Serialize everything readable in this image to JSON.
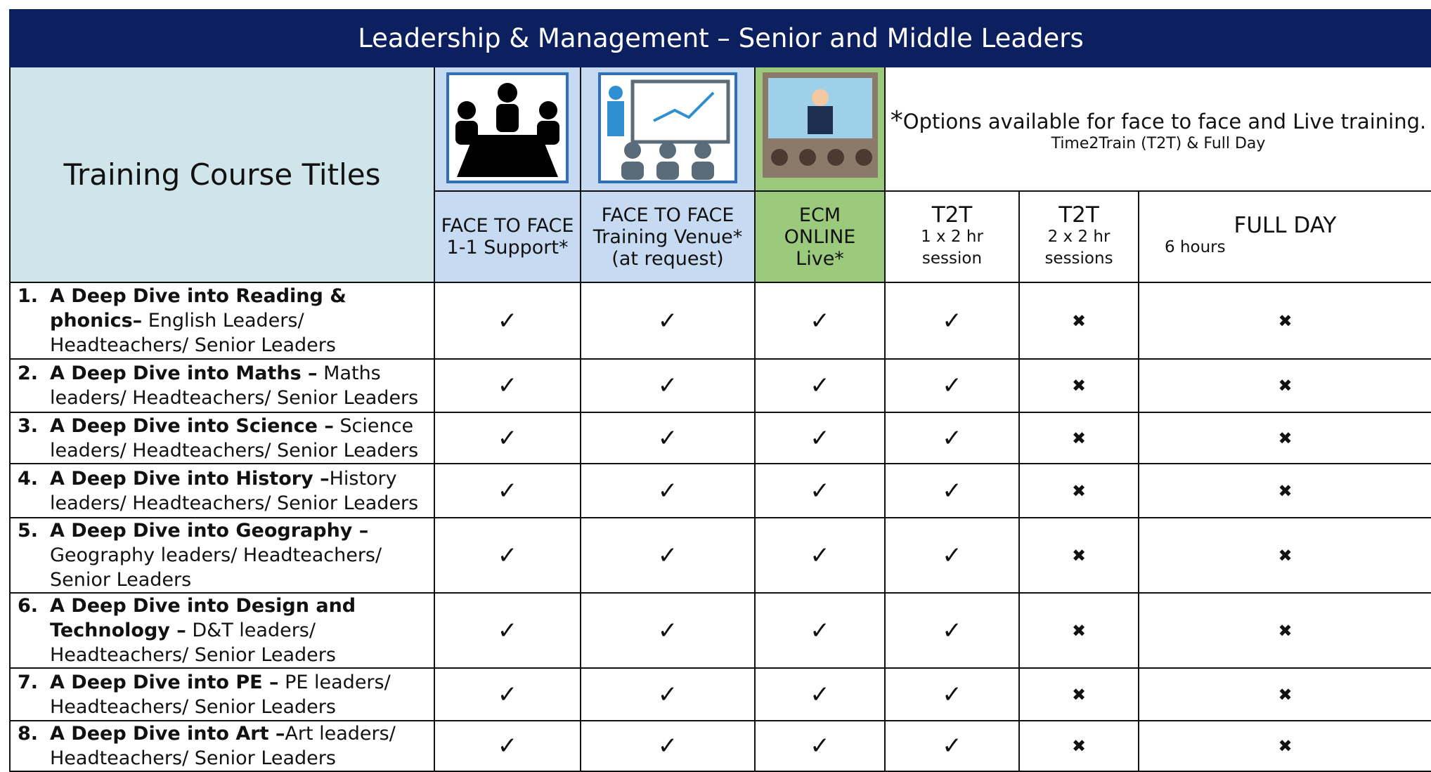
{
  "header": {
    "title": "Leadership & Management – Senior and Middle Leaders",
    "left_title": "Training Course Titles",
    "note_star": "*",
    "note": "Options available for face to face and Live training.",
    "note_sub": "Time2Train (T2T) & Full Day"
  },
  "columns": [
    {
      "lines": [
        "FACE TO FACE",
        "1-1 Support*"
      ]
    },
    {
      "lines": [
        "FACE TO FACE",
        "Training Venue*",
        "(at request)"
      ]
    },
    {
      "lines": [
        "ECM",
        "ONLINE",
        "Live*"
      ]
    },
    {
      "lines": [
        "T2T",
        "1 x 2 hr",
        "session"
      ]
    },
    {
      "lines": [
        "T2T",
        "2 x 2 hr",
        "sessions"
      ]
    },
    {
      "lines": [
        "FULL DAY",
        "6 hours"
      ]
    }
  ],
  "rows": [
    {
      "number": "1.",
      "bold": "A Deep Dive into Reading & phonics–",
      "text": " English Leaders/ Headteachers/ Senior Leaders",
      "marks": [
        "✓",
        "✓",
        "✓",
        "✓",
        "✖",
        "✖"
      ]
    },
    {
      "number": "2.",
      "bold": "A Deep Dive into Maths –",
      "text": " Maths leaders/ Headteachers/ Senior Leaders",
      "marks": [
        "✓",
        "✓",
        "✓",
        "✓",
        "✖",
        "✖"
      ]
    },
    {
      "number": "3.",
      "bold": "A Deep Dive into Science –",
      "text": " Science leaders/ Headteachers/ Senior Leaders",
      "marks": [
        "✓",
        "✓",
        "✓",
        "✓",
        "✖",
        "✖"
      ]
    },
    {
      "number": "4.",
      "bold": "A  Deep Dive into History –",
      "text": "History leaders/ Headteachers/ Senior Leaders",
      "marks": [
        "✓",
        "✓",
        "✓",
        "✓",
        "✖",
        "✖"
      ]
    },
    {
      "number": "5.",
      "bold": "A  Deep Dive into Geography –",
      "text": " Geography leaders/ Headteachers/ Senior Leaders",
      "marks": [
        "✓",
        "✓",
        "✓",
        "✓",
        "✖",
        "✖"
      ]
    },
    {
      "number": "6.",
      "bold": "A Deep Dive into Design and Technology –",
      "text": " D&T leaders/ Headteachers/ Senior Leaders",
      "marks": [
        "✓",
        "✓",
        "✓",
        "✓",
        "✖",
        "✖"
      ]
    },
    {
      "number": "7.",
      "bold": "A  Deep Dive into PE –",
      "text": " PE leaders/ Headteachers/ Senior Leaders",
      "marks": [
        "✓",
        "✓",
        "✓",
        "✓",
        "✖",
        "✖"
      ]
    },
    {
      "number": "8.",
      "bold": "A  Deep Dive into Art –",
      "text": "Art leaders/ Headteachers/ Senior Leaders",
      "marks": [
        "✓",
        "✓",
        "✓",
        "✓",
        "✖",
        "✖"
      ]
    }
  ]
}
